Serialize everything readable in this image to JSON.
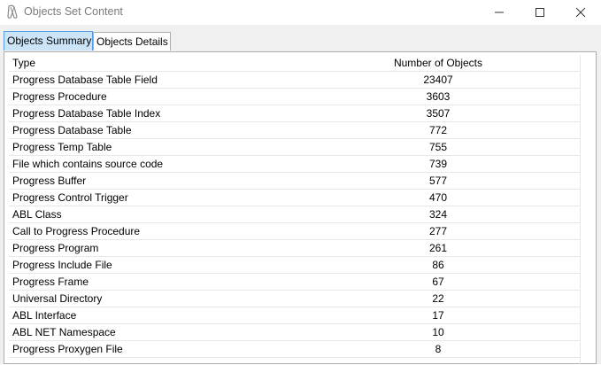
{
  "window": {
    "title": "Objects Set Content",
    "icons": {
      "app": "pin-app-icon",
      "minimize": "minimize-icon",
      "maximize": "maximize-icon",
      "close": "close-icon"
    }
  },
  "tabs": [
    {
      "label": "Objects Summary",
      "active": true
    },
    {
      "label": "Objects Details",
      "active": false
    }
  ],
  "table": {
    "headers": {
      "type": "Type",
      "count": "Number of Objects"
    },
    "rows": [
      {
        "type": "Progress Database Table Field",
        "count": "23407"
      },
      {
        "type": "Progress Procedure",
        "count": "3603"
      },
      {
        "type": "Progress Database Table Index",
        "count": "3507"
      },
      {
        "type": "Progress Database Table",
        "count": "772"
      },
      {
        "type": "Progress Temp Table",
        "count": "755"
      },
      {
        "type": "File which contains source code",
        "count": "739"
      },
      {
        "type": "Progress Buffer",
        "count": "577"
      },
      {
        "type": "Progress Control Trigger",
        "count": "470"
      },
      {
        "type": "ABL Class",
        "count": "324"
      },
      {
        "type": "Call to Progress Procedure",
        "count": "277"
      },
      {
        "type": "Progress Program",
        "count": "261"
      },
      {
        "type": "Progress Include File",
        "count": "86"
      },
      {
        "type": "Progress Frame",
        "count": "67"
      },
      {
        "type": "Universal Directory",
        "count": "22"
      },
      {
        "type": "ABL Interface",
        "count": "17"
      },
      {
        "type": "ABL NET Namespace",
        "count": "10"
      },
      {
        "type": "Progress Proxygen File",
        "count": "8"
      }
    ]
  },
  "colors": {
    "active_tab": "#cce4f7",
    "active_tab_border": "#569de5",
    "title_text": "#7a7a7a"
  }
}
